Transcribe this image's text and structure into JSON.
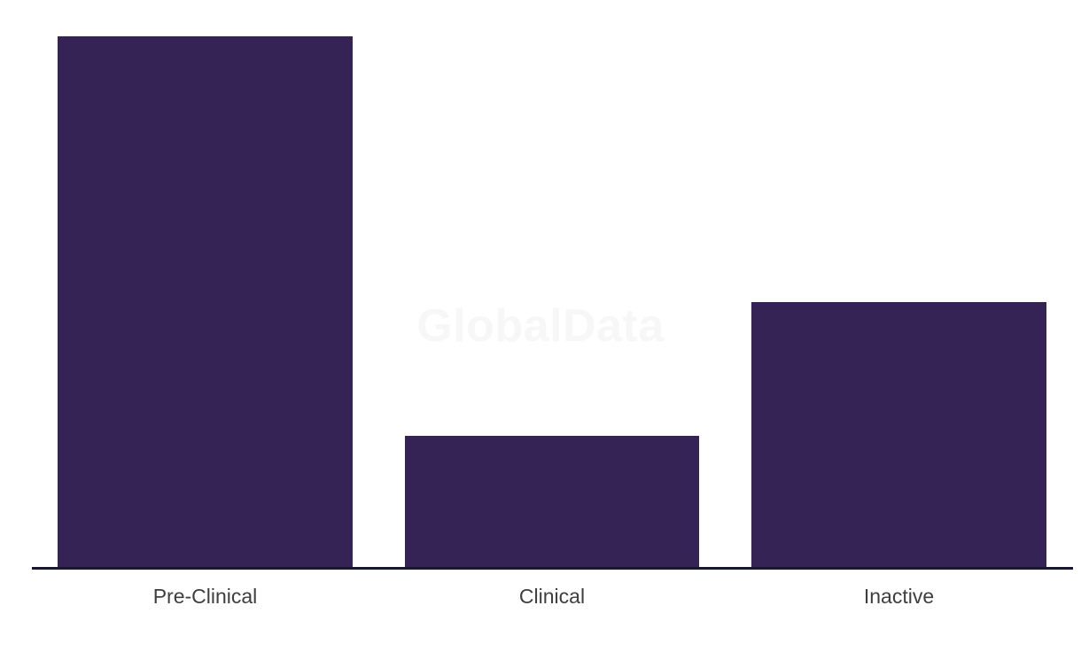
{
  "watermark_text": "GlobalData",
  "colors": {
    "bar": "#352355",
    "axis": "#191730",
    "label": "#3e3e3e",
    "watermark": "#f7f7f7",
    "background": "#ffffff"
  },
  "chart_data": {
    "type": "bar",
    "categories": [
      "Pre-Clinical",
      "Clinical",
      "Inactive"
    ],
    "values": [
      599,
      148,
      299
    ],
    "title": "",
    "xlabel": "",
    "ylabel": "",
    "ylim": [
      0,
      620
    ],
    "grid": false,
    "legend": false,
    "value_axis_visible": false,
    "bar_color": "#352355"
  }
}
